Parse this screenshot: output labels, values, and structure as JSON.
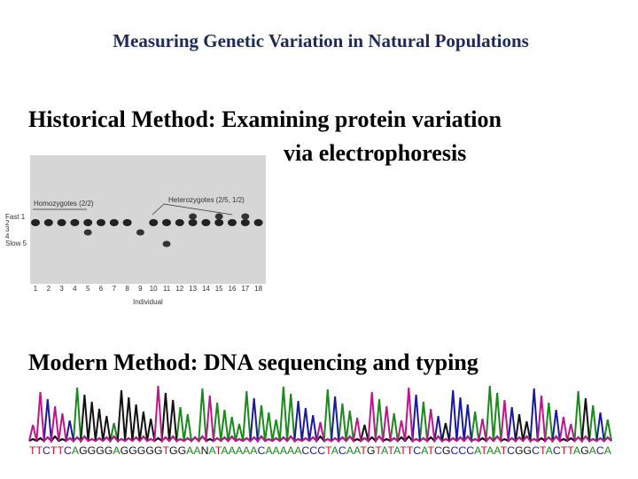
{
  "title": "Measuring Genetic Variation in Natural Populations",
  "historical": {
    "line1": "Historical Method: Examining protein variation",
    "line2": "via electrophoresis"
  },
  "gel": {
    "homozygotes": "Homozygotes (2/2)",
    "heterozygotes": "Heterozygotes (2/5, 1/2)",
    "rows": [
      "Fast 1",
      "2",
      "3",
      "4",
      "Slow 5"
    ],
    "lanes": [
      1,
      2,
      3,
      4,
      5,
      6,
      7,
      8,
      9,
      10,
      11,
      12,
      13,
      14,
      15,
      16,
      17,
      18
    ],
    "axis_label": "Individual"
  },
  "modern": {
    "heading": "Modern Method: DNA sequencing and typing",
    "sequence": "TTCTTCAGGGGAGGGGGTGGAANATAAAAACAAAAACCCTACAATGTATATTCATCGCCCATAATCGGCTACTTAGACA"
  }
}
